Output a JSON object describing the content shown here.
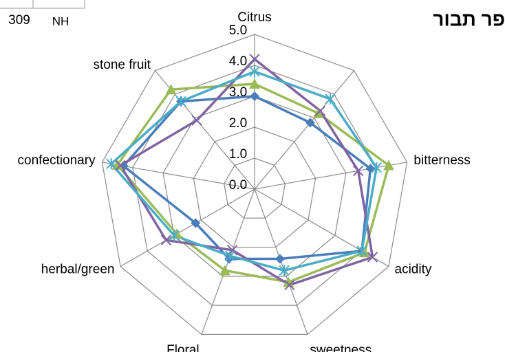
{
  "chart_data": {
    "type": "radar",
    "title": "פר תבור",
    "annotations": [
      "309",
      "NH"
    ],
    "categories": [
      "Citrus",
      null,
      "bitterness",
      "acidity",
      "sweetness",
      "Floral",
      "herbal/green",
      "confectionary",
      "stone fruit"
    ],
    "ylim": [
      0,
      5
    ],
    "yticks": [
      {
        "value": 0,
        "label": "0.0"
      },
      {
        "value": 1,
        "label": "1.0"
      },
      {
        "value": 2,
        "label": "2.0"
      },
      {
        "value": 3,
        "label": "3.0"
      },
      {
        "value": 4,
        "label": "4.0"
      },
      {
        "value": 5,
        "label": "5.0"
      }
    ],
    "grid": true,
    "series": [
      {
        "color": "#4a7ebb",
        "marker": "diamond",
        "values": [
          3.0,
          2.8,
          3.8,
          4.0,
          2.4,
          2.4,
          2.2,
          4.3,
          3.7
        ]
      },
      {
        "color": "#9bbb59",
        "marker": "triangle",
        "values": [
          3.4,
          3.2,
          4.4,
          4.1,
          3.2,
          2.8,
          2.9,
          4.5,
          4.2
        ]
      },
      {
        "color": "#8064a2",
        "marker": "x",
        "values": [
          4.2,
          3.3,
          3.4,
          4.4,
          3.3,
          2.1,
          3.3,
          4.4,
          2.9
        ]
      },
      {
        "color": "#4bacc6",
        "marker": "star",
        "values": [
          3.8,
          3.8,
          4.0,
          4.0,
          2.8,
          2.3,
          3.0,
          4.7,
          3.7
        ]
      }
    ]
  }
}
